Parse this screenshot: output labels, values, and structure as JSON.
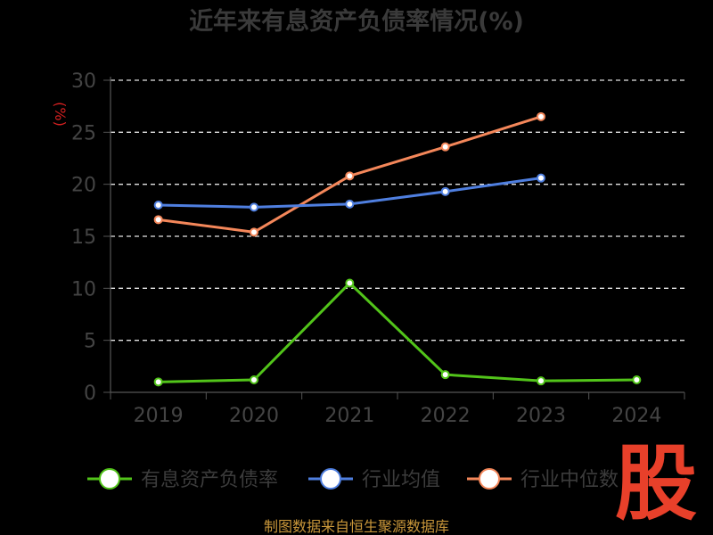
{
  "chart_data": {
    "type": "line",
    "title": "近年来有息资产负债率情况(%)",
    "ylabel": "(%)",
    "categories": [
      "2019",
      "2020",
      "2021",
      "2022",
      "2023",
      "2024"
    ],
    "ylim": [
      0,
      30
    ],
    "yticks": [
      0,
      5,
      10,
      15,
      20,
      25,
      30
    ],
    "grid": true,
    "legend_position": "bottom",
    "series": [
      {
        "name": "有息资产负债率",
        "color": "#52c41a",
        "values": [
          1.0,
          1.2,
          10.5,
          1.7,
          1.1,
          1.2
        ]
      },
      {
        "name": "行业均值",
        "color": "#4f7fe0",
        "values": [
          18.0,
          17.8,
          18.1,
          19.3,
          20.6,
          null
        ]
      },
      {
        "name": "行业中位数",
        "color": "#f4875a",
        "values": [
          16.6,
          15.4,
          20.8,
          23.6,
          26.5,
          null
        ]
      }
    ]
  },
  "source_note": "制图数据来自恒生聚源数据库",
  "watermark": "股"
}
